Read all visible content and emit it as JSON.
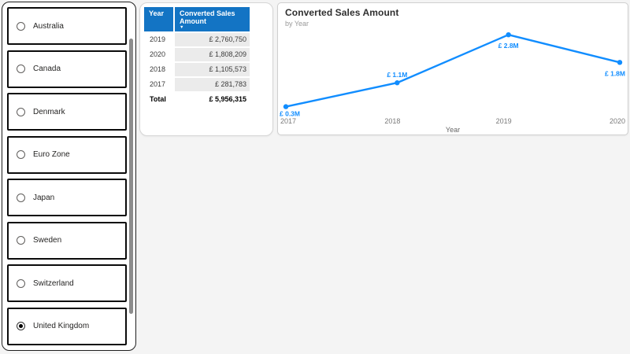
{
  "slicer": {
    "items": [
      {
        "label": "Australia",
        "selected": false
      },
      {
        "label": "Canada",
        "selected": false
      },
      {
        "label": "Denmark",
        "selected": false
      },
      {
        "label": "Euro Zone",
        "selected": false
      },
      {
        "label": "Japan",
        "selected": false
      },
      {
        "label": "Sweden",
        "selected": false
      },
      {
        "label": "Switzerland",
        "selected": false
      },
      {
        "label": "United Kingdom",
        "selected": true
      }
    ]
  },
  "table": {
    "columns": [
      {
        "label": "Year",
        "sorted": false
      },
      {
        "label": "Converted Sales Amount",
        "sorted": true,
        "sort_icon": "▼"
      }
    ],
    "rows": [
      {
        "year": "2019",
        "amount": "£ 2,760,750"
      },
      {
        "year": "2020",
        "amount": "£ 1,808,209"
      },
      {
        "year": "2018",
        "amount": "£ 1,105,573"
      },
      {
        "year": "2017",
        "amount": "£ 281,783"
      }
    ],
    "total": {
      "year": "Total",
      "amount": "£ 5,956,315"
    }
  },
  "chart": {
    "title": "Converted Sales Amount",
    "subtitle": "by Year"
  },
  "chart_data": {
    "type": "line",
    "title": "Converted Sales Amount",
    "subtitle": "by Year",
    "x": [
      "2017",
      "2018",
      "2019",
      "2020"
    ],
    "series": [
      {
        "name": "Converted Sales Amount",
        "values": [
          281783,
          1105573,
          2760750,
          1808209
        ]
      }
    ],
    "data_labels": [
      "£ 0.3M",
      "£ 1.1M",
      "£ 2.8M",
      "£ 1.8M"
    ],
    "label_placement": [
      "below-start",
      "above",
      "below",
      "below-end"
    ],
    "xlabel": "Year",
    "ylabel": "",
    "ylim": [
      0,
      3200000
    ],
    "grid": false,
    "legend": "none",
    "line_color": "#118DFF"
  },
  "colors": {
    "table_header_bg": "#1374C4",
    "accent_blue": "#118DFF",
    "row_alt_bg": "#EBEBEB",
    "tick_gray": "#7a7a7a",
    "page_bg": "#F4F4F4"
  }
}
